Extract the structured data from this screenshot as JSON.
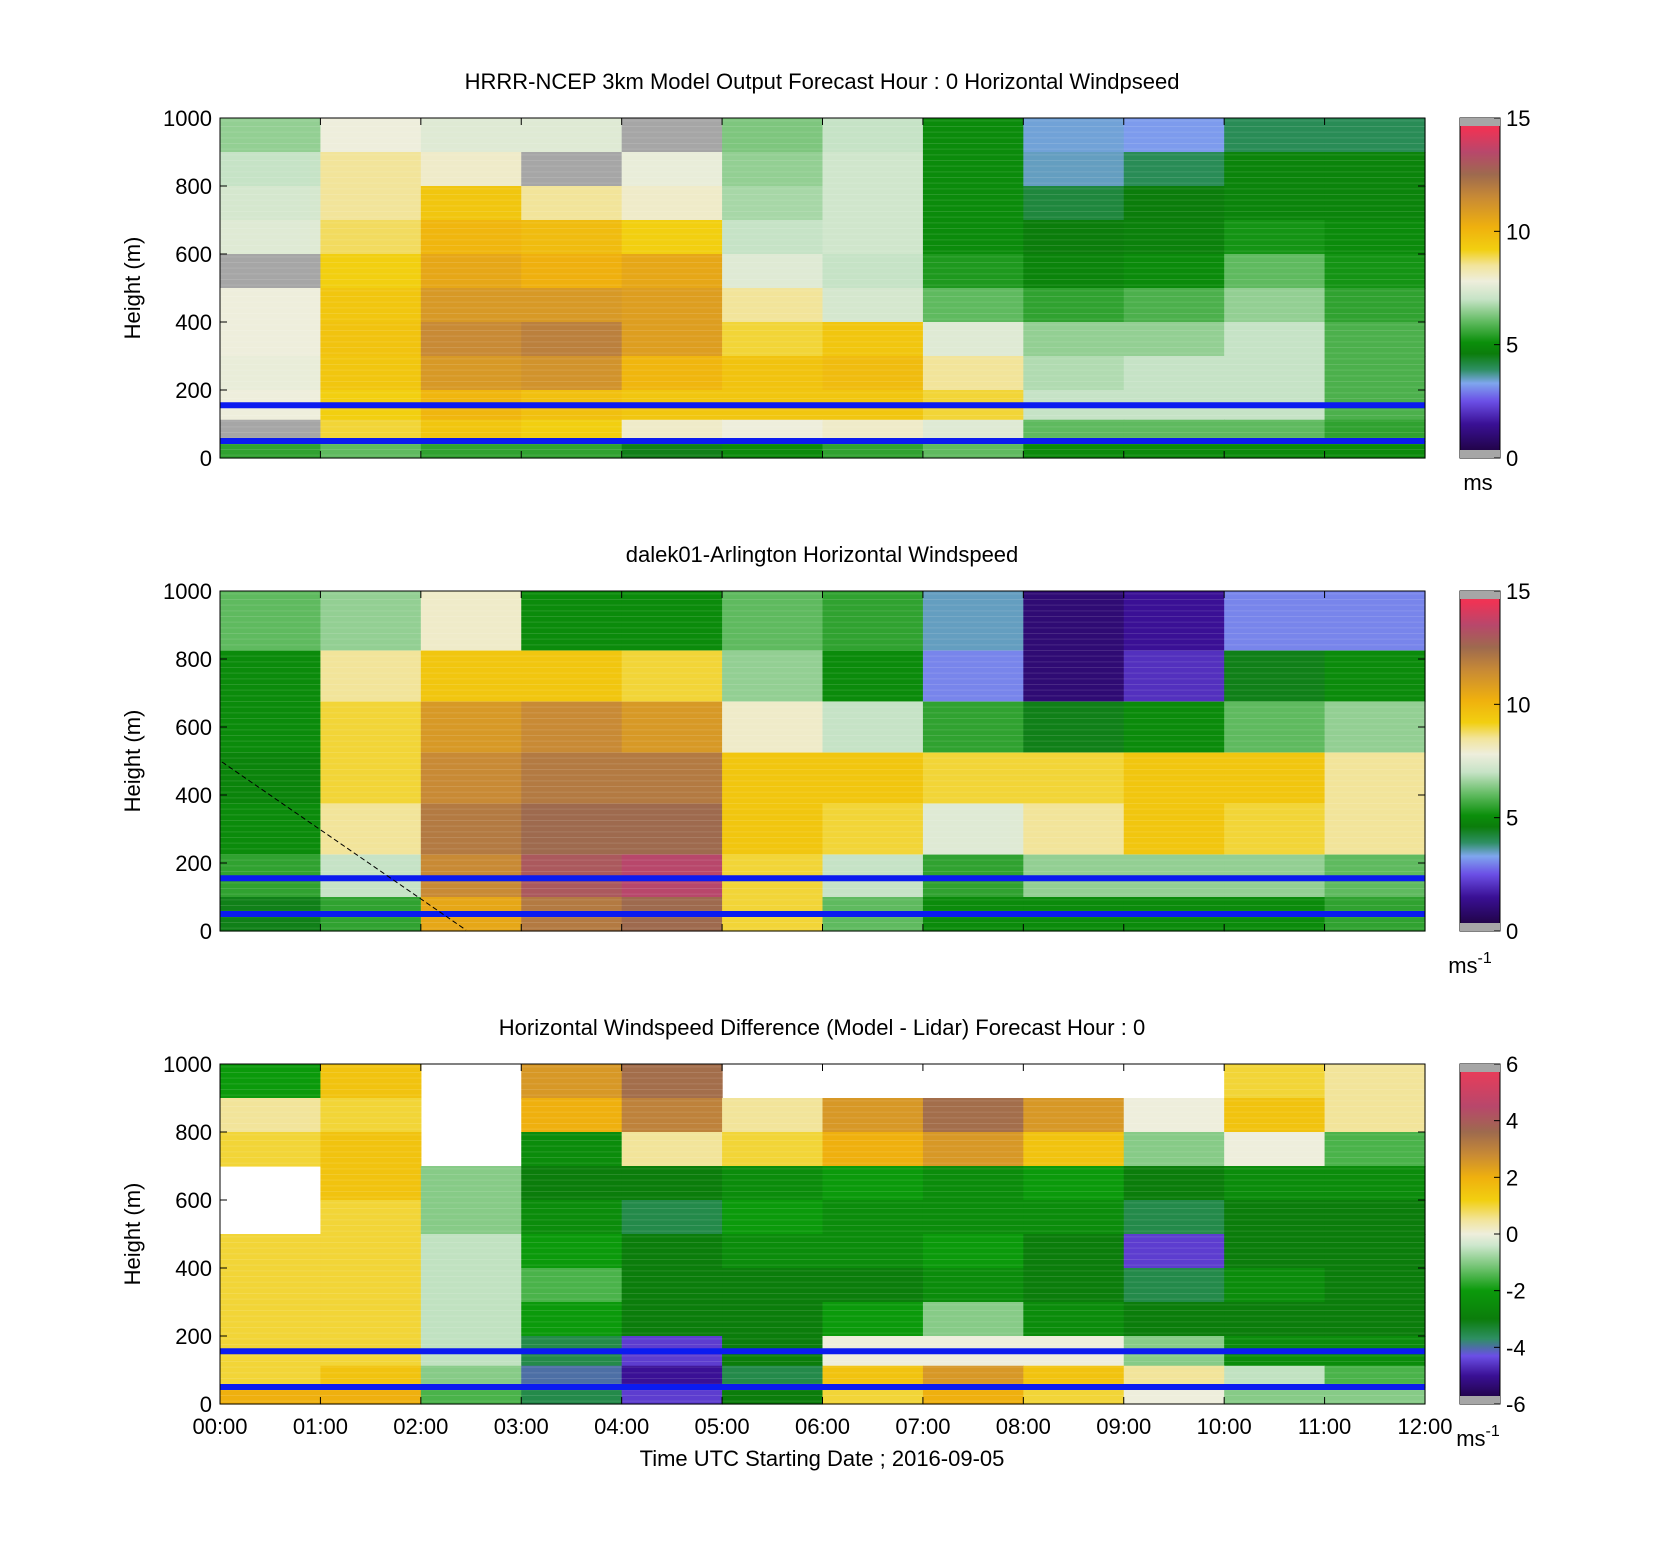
{
  "figure": {
    "x_axis_label": "Time UTC  Starting Date ; 2016-09-05",
    "x_tick_labels": [
      "00:00",
      "01:00",
      "02:00",
      "03:00",
      "04:00",
      "05:00",
      "06:00",
      "07:00",
      "08:00",
      "09:00",
      "10:00",
      "11:00",
      "12:00"
    ]
  },
  "chart_data": [
    {
      "type": "heatmap",
      "title": "HRRR-NCEP 3km Model Output   Forecast Hour : 0 Horizontal Windpseed",
      "ylabel": "Height (m)",
      "xlabel": "",
      "x_range": [
        "00:00",
        "12:00"
      ],
      "ylim": [
        0,
        1000
      ],
      "y_ticks": [
        0,
        200,
        400,
        600,
        800,
        1000
      ],
      "colorbar": {
        "range": [
          0,
          15
        ],
        "ticks": [
          0,
          5,
          10,
          15
        ],
        "unit": "ms"
      },
      "hours": [
        0,
        1,
        2,
        3,
        4,
        5,
        6,
        7,
        8,
        9,
        10,
        11
      ],
      "levels_m": [
        950,
        850,
        750,
        650,
        550,
        450,
        350,
        250,
        150,
        75,
        25
      ],
      "values": [
        [
          6.5,
          7.8,
          7.5,
          7.5,
          0.5,
          6.3,
          7.0,
          5.0,
          3.4,
          3.2,
          4.0,
          4.0
        ],
        [
          7.0,
          8.5,
          8.0,
          0.5,
          7.7,
          6.5,
          7.2,
          5.0,
          3.5,
          4.0,
          4.8,
          4.8
        ],
        [
          7.3,
          8.5,
          9.5,
          8.5,
          8.0,
          6.7,
          7.2,
          5.0,
          4.2,
          4.6,
          4.8,
          4.8
        ],
        [
          7.5,
          8.8,
          10.0,
          9.8,
          9.2,
          7.0,
          7.2,
          5.0,
          4.6,
          4.7,
          5.2,
          5.0
        ],
        [
          0.5,
          9.2,
          10.5,
          10.2,
          10.5,
          7.5,
          7.0,
          5.3,
          4.8,
          5.0,
          6.0,
          5.2
        ],
        [
          7.8,
          9.5,
          11.0,
          11.0,
          10.8,
          8.5,
          7.3,
          6.0,
          5.5,
          5.8,
          6.5,
          5.5
        ],
        [
          7.8,
          9.6,
          11.5,
          11.8,
          10.8,
          9.0,
          9.5,
          7.5,
          6.5,
          6.5,
          7.0,
          5.8
        ],
        [
          7.7,
          9.5,
          11.0,
          11.2,
          10.0,
          9.6,
          9.8,
          8.5,
          6.8,
          7.0,
          7.0,
          5.8
        ],
        [
          7.8,
          9.2,
          10.0,
          9.7,
          9.5,
          9.5,
          9.5,
          9.0,
          7.0,
          7.0,
          7.0,
          5.8
        ],
        [
          0.5,
          9.0,
          9.5,
          9.2,
          8.0,
          7.8,
          8.0,
          7.5,
          6.0,
          6.0,
          6.0,
          5.5
        ],
        [
          5.5,
          6.0,
          5.5,
          5.5,
          4.5,
          5.0,
          5.5,
          6.0,
          5.0,
          5.0,
          5.0,
          5.0
        ]
      ],
      "horizontal_lines_m": [
        155,
        50
      ],
      "line_color": "#0b1bf0"
    },
    {
      "type": "heatmap",
      "title": "dalek01-Arlington  Horizontal Windspeed",
      "ylabel": "Height (m)",
      "xlabel": "",
      "x_range": [
        "00:00",
        "12:00"
      ],
      "ylim": [
        0,
        1000
      ],
      "y_ticks": [
        0,
        200,
        400,
        600,
        800,
        1000
      ],
      "colorbar": {
        "range": [
          0,
          15
        ],
        "ticks": [
          0,
          5,
          10,
          15
        ],
        "unit": "ms",
        "unit_exponent": "-1"
      },
      "hours": [
        0,
        1,
        2,
        3,
        4,
        5,
        6,
        7,
        8,
        9,
        10,
        11
      ],
      "levels_m": [
        900,
        750,
        600,
        450,
        300,
        150,
        50
      ],
      "values": [
        [
          6.0,
          6.5,
          8.0,
          5.0,
          5.0,
          6.0,
          5.5,
          3.5,
          1.0,
          1.5,
          3.0,
          3.0
        ],
        [
          5.0,
          8.5,
          9.5,
          9.5,
          9.0,
          6.5,
          5.0,
          3.0,
          1.0,
          2.0,
          4.5,
          5.0
        ],
        [
          5.0,
          9.0,
          11.0,
          11.5,
          11.0,
          8.0,
          7.0,
          5.5,
          4.5,
          5.0,
          6.0,
          6.5
        ],
        [
          4.8,
          9.0,
          11.5,
          12.0,
          12.0,
          9.5,
          9.5,
          9.0,
          9.0,
          9.5,
          9.5,
          8.5
        ],
        [
          5.0,
          8.5,
          12.0,
          12.5,
          12.5,
          9.5,
          9.0,
          7.5,
          8.5,
          9.5,
          9.0,
          8.5
        ],
        [
          5.5,
          7.0,
          11.5,
          13.0,
          13.5,
          9.0,
          7.0,
          5.5,
          6.5,
          6.5,
          6.5,
          6.0
        ],
        [
          4.5,
          5.5,
          10.5,
          12.0,
          12.5,
          9.0,
          6.0,
          5.0,
          5.0,
          5.0,
          5.0,
          5.5
        ]
      ],
      "horizontal_lines_m": [
        155,
        50
      ],
      "line_color": "#0b1bf0"
    },
    {
      "type": "heatmap",
      "title": "Horizontal Windspeed Difference (Model - Lidar) Forecast Hour : 0",
      "ylabel": "Height (m)",
      "xlabel": "Time UTC  Starting Date ; 2016-09-05",
      "x_range": [
        "00:00",
        "12:00"
      ],
      "ylim": [
        0,
        1000
      ],
      "y_ticks": [
        0,
        200,
        400,
        600,
        800,
        1000
      ],
      "colorbar": {
        "range": [
          -6,
          6
        ],
        "ticks": [
          -6,
          -4,
          -2,
          0,
          2,
          4,
          6
        ],
        "unit": "ms",
        "unit_exponent": "-1"
      },
      "hours": [
        0,
        1,
        2,
        3,
        4,
        5,
        6,
        7,
        8,
        9,
        10,
        11
      ],
      "levels_m": [
        950,
        850,
        750,
        650,
        550,
        450,
        350,
        250,
        150,
        75,
        25
      ],
      "values": [
        [
          -2.0,
          1.5,
          null,
          2.5,
          3.5,
          null,
          null,
          null,
          null,
          null,
          1.0,
          0.5
        ],
        [
          0.5,
          1.0,
          null,
          2.0,
          3.0,
          0.5,
          2.5,
          3.5,
          2.5,
          0.0,
          1.5,
          0.5
        ],
        [
          1.0,
          1.5,
          null,
          -2.5,
          0.5,
          1.0,
          2.0,
          2.5,
          1.5,
          -1.0,
          0.0,
          -1.5
        ],
        [
          null,
          1.5,
          -1.0,
          -3.0,
          -3.0,
          -2.5,
          -2.0,
          -2.5,
          -2.0,
          -3.0,
          -2.5,
          -2.5
        ],
        [
          null,
          1.0,
          -1.0,
          -2.5,
          -3.5,
          -2.0,
          -2.5,
          -2.5,
          -2.5,
          -3.5,
          -3.0,
          -3.0
        ],
        [
          1.0,
          1.0,
          -0.5,
          -2.0,
          -3.0,
          -2.5,
          -2.5,
          -2.0,
          -3.0,
          -4.5,
          -3.0,
          -3.0
        ],
        [
          1.0,
          1.0,
          -0.5,
          -1.5,
          -3.0,
          -3.0,
          -3.0,
          -2.5,
          -3.0,
          -3.5,
          -2.5,
          -3.0
        ],
        [
          1.0,
          1.0,
          -0.5,
          -2.0,
          -3.0,
          -3.0,
          -2.0,
          -1.0,
          -2.5,
          -3.0,
          -3.0,
          -3.0
        ],
        [
          1.0,
          1.0,
          -0.5,
          -3.5,
          -4.5,
          -3.0,
          0.0,
          0.0,
          0.0,
          -1.0,
          -2.5,
          -2.5
        ],
        [
          1.0,
          1.5,
          -1.0,
          -4.0,
          -5.0,
          -3.5,
          1.5,
          2.5,
          1.5,
          0.5,
          -0.5,
          -1.5
        ],
        [
          2.0,
          2.0,
          -1.5,
          -3.5,
          -4.5,
          -3.0,
          1.0,
          2.0,
          1.0,
          0.0,
          -1.0,
          -1.0
        ]
      ],
      "horizontal_lines_m": [
        155,
        50
      ],
      "line_color": "#0b1bf0"
    }
  ],
  "palettes": {
    "speed_stops": [
      [
        0.0,
        "#1a0033"
      ],
      [
        1.5,
        "#3a1095"
      ],
      [
        2.5,
        "#6b4fe6"
      ],
      [
        3.3,
        "#7fa6ee"
      ],
      [
        3.9,
        "#2e8f63"
      ],
      [
        4.6,
        "#0b7d0b"
      ],
      [
        5.1,
        "#0b8f0b"
      ],
      [
        6.0,
        "#5fba5f"
      ],
      [
        7.0,
        "#c6e3c6"
      ],
      [
        7.8,
        "#eeeedc"
      ],
      [
        8.5,
        "#f2e49a"
      ],
      [
        9.2,
        "#f2cf10"
      ],
      [
        10.2,
        "#efb00e"
      ],
      [
        11.5,
        "#c88a35"
      ],
      [
        12.5,
        "#9e6a4e"
      ],
      [
        13.5,
        "#b8476b"
      ],
      [
        14.5,
        "#ee3355"
      ],
      [
        15.0,
        "#f23a56"
      ]
    ],
    "diff_stops": [
      [
        -6.0,
        "#1a0033"
      ],
      [
        -5.0,
        "#3a1095"
      ],
      [
        -4.3,
        "#6b4fe6"
      ],
      [
        -3.7,
        "#2e8f63"
      ],
      [
        -3.0,
        "#0b7d0b"
      ],
      [
        -2.0,
        "#0b9a0b"
      ],
      [
        -1.2,
        "#6fc26f"
      ],
      [
        -0.4,
        "#cde7cd"
      ],
      [
        0.0,
        "#eeeedc"
      ],
      [
        0.5,
        "#f2e49a"
      ],
      [
        1.2,
        "#f2cf10"
      ],
      [
        2.0,
        "#efb00e"
      ],
      [
        2.8,
        "#c88a35"
      ],
      [
        3.6,
        "#9e6a4e"
      ],
      [
        4.5,
        "#b8476b"
      ],
      [
        6.0,
        "#f23a56"
      ]
    ],
    "grey": "#a6a6a6"
  }
}
